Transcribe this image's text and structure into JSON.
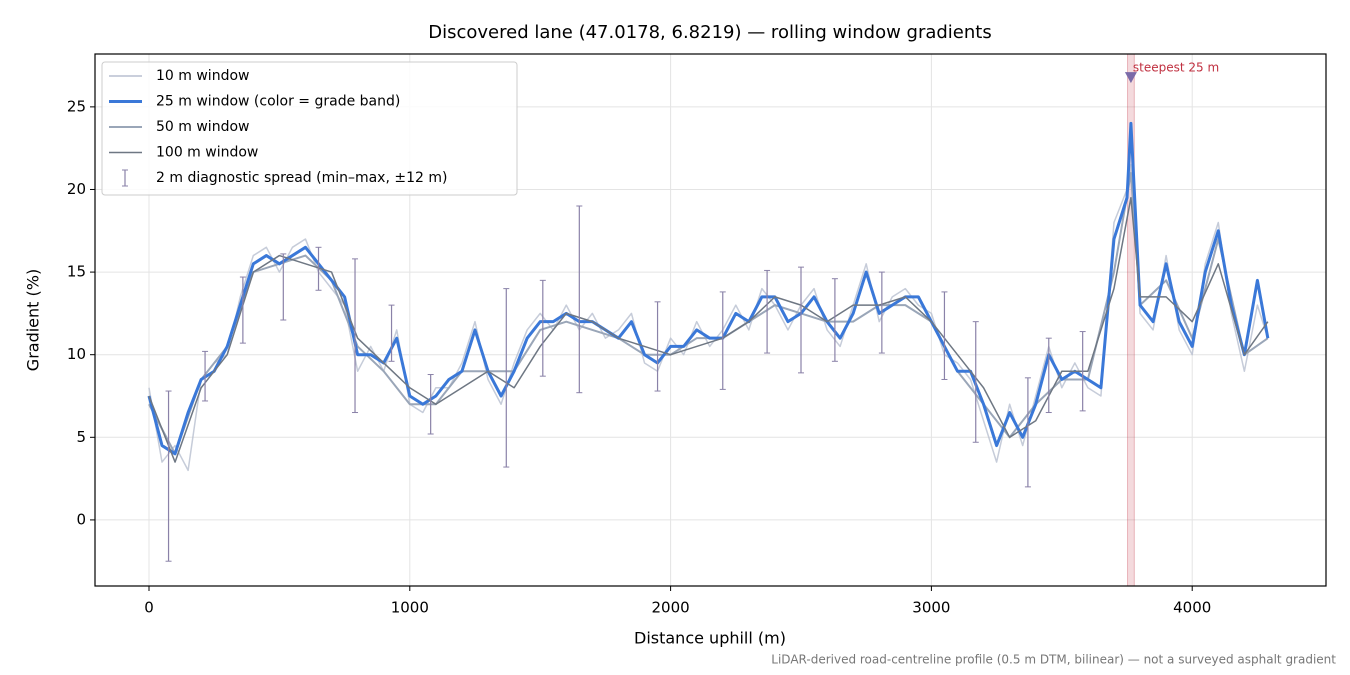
{
  "chart_data": {
    "type": "line",
    "title": "Discovered lane (47.0178, 6.8219) — rolling window gradients",
    "x_label": "Distance uphill (m)",
    "y_label": "Gradient (%)",
    "footnote": "LiDAR-derived road-centreline profile (0.5 m DTM, bilinear) — not a surveyed asphalt gradient",
    "xlim": [
      -207,
      4513
    ],
    "ylim": [
      -4.0,
      28.2
    ],
    "xticks": [
      0,
      1000,
      2000,
      3000,
      4000
    ],
    "yticks": [
      0,
      5,
      10,
      15,
      20,
      25
    ],
    "grid": true,
    "legend": "upper left",
    "series": [
      {
        "name": "10 m window",
        "color": "#b8bfd0",
        "width": 1.5,
        "x": [
          0,
          50,
          100,
          150,
          200,
          250,
          300,
          350,
          400,
          450,
          500,
          550,
          600,
          650,
          700,
          750,
          800,
          850,
          900,
          950,
          1000,
          1050,
          1100,
          1150,
          1200,
          1250,
          1300,
          1350,
          1400,
          1450,
          1500,
          1550,
          1600,
          1650,
          1700,
          1750,
          1800,
          1850,
          1900,
          1950,
          2000,
          2050,
          2100,
          2150,
          2200,
          2250,
          2300,
          2350,
          2400,
          2450,
          2500,
          2550,
          2600,
          2650,
          2700,
          2750,
          2800,
          2850,
          2900,
          2950,
          3000,
          3050,
          3100,
          3150,
          3200,
          3250,
          3300,
          3350,
          3400,
          3450,
          3500,
          3550,
          3600,
          3650,
          3700,
          3750,
          3765,
          3800,
          3850,
          3900,
          3950,
          4000,
          4050,
          4100,
          4150,
          4200,
          4250,
          4290
        ],
        "values": [
          8,
          3.5,
          4.5,
          3,
          8.5,
          9.5,
          10,
          13.5,
          16,
          16.5,
          15,
          16.5,
          17,
          15,
          14,
          13,
          9,
          10.5,
          9,
          11.5,
          7,
          6.5,
          8,
          8,
          9.5,
          12,
          8.5,
          7,
          9.5,
          11.5,
          12.5,
          11.5,
          13,
          11.5,
          12.5,
          11,
          11.5,
          12.5,
          9.5,
          9,
          11,
          10,
          12,
          10.5,
          11.5,
          13,
          11.5,
          14,
          13,
          11.5,
          13,
          14,
          11.5,
          10.5,
          13,
          15.5,
          12,
          13.5,
          14,
          13,
          12.5,
          10,
          9.5,
          8.5,
          6,
          3.5,
          7,
          4.5,
          7.5,
          10.5,
          8,
          9.5,
          8,
          7.5,
          18,
          20,
          21.5,
          12.5,
          11.5,
          16,
          11.5,
          10,
          15.5,
          18,
          12.5,
          9,
          13,
          11
        ]
      },
      {
        "name": "25 m window (color = grade band)",
        "color": "#3a78d8",
        "width": 3,
        "x": [
          0,
          50,
          100,
          150,
          200,
          250,
          300,
          350,
          400,
          450,
          500,
          550,
          600,
          650,
          700,
          750,
          800,
          850,
          900,
          950,
          1000,
          1050,
          1100,
          1150,
          1200,
          1250,
          1300,
          1350,
          1400,
          1450,
          1500,
          1550,
          1600,
          1650,
          1700,
          1750,
          1800,
          1850,
          1900,
          1950,
          2000,
          2050,
          2100,
          2150,
          2200,
          2250,
          2300,
          2350,
          2400,
          2450,
          2500,
          2550,
          2600,
          2650,
          2700,
          2750,
          2800,
          2850,
          2900,
          2950,
          3000,
          3050,
          3100,
          3150,
          3200,
          3250,
          3300,
          3350,
          3400,
          3450,
          3500,
          3550,
          3600,
          3650,
          3700,
          3750,
          3765,
          3800,
          3850,
          3900,
          3950,
          4000,
          4050,
          4100,
          4150,
          4200,
          4250,
          4290
        ],
        "values": [
          7.5,
          4.5,
          4,
          6.5,
          8.5,
          9,
          10.5,
          13,
          15.5,
          16,
          15.5,
          16,
          16.5,
          15.5,
          14.5,
          13.5,
          10,
          10,
          9.5,
          11,
          7.5,
          7,
          7.5,
          8.5,
          9,
          11.5,
          9,
          7.5,
          9,
          11,
          12,
          12,
          12.5,
          12,
          12,
          11.5,
          11,
          12,
          10,
          9.5,
          10.5,
          10.5,
          11.5,
          11,
          11,
          12.5,
          12,
          13.5,
          13.5,
          12,
          12.5,
          13.5,
          12,
          11,
          12.5,
          15,
          12.5,
          13,
          13.5,
          13.5,
          12,
          10.5,
          9,
          9,
          7,
          4.5,
          6.5,
          5,
          7,
          10,
          8.5,
          9,
          8.5,
          8,
          17,
          19.5,
          24,
          13,
          12,
          15.5,
          12,
          10.5,
          15,
          17.5,
          13,
          10,
          14.5,
          11
        ]
      },
      {
        "name": "50 m window",
        "color": "#9aa6b8",
        "width": 2,
        "x": [
          0,
          100,
          200,
          300,
          400,
          500,
          600,
          700,
          800,
          900,
          1000,
          1100,
          1200,
          1300,
          1400,
          1500,
          1600,
          1700,
          1800,
          1900,
          2000,
          2100,
          2200,
          2300,
          2400,
          2500,
          2600,
          2700,
          2800,
          2900,
          3000,
          3100,
          3200,
          3300,
          3400,
          3500,
          3600,
          3700,
          3765,
          3800,
          3900,
          4000,
          4100,
          4200,
          4290
        ],
        "values": [
          7,
          4,
          8.5,
          10.5,
          15,
          15.5,
          16,
          14.5,
          10.5,
          9,
          7,
          7,
          9,
          9,
          9,
          11.5,
          12,
          11.5,
          11,
          10,
          10,
          11,
          11,
          12,
          13,
          12.5,
          12,
          12,
          13,
          13,
          12,
          9,
          7,
          5,
          7,
          8.5,
          8.5,
          15,
          21,
          13,
          14.5,
          11,
          17,
          10,
          11
        ]
      },
      {
        "name": "100 m window",
        "color": "#6e7783",
        "width": 1.5,
        "x": [
          0,
          100,
          200,
          300,
          400,
          500,
          600,
          700,
          800,
          900,
          1000,
          1100,
          1200,
          1300,
          1400,
          1500,
          1600,
          1700,
          1800,
          1900,
          2000,
          2100,
          2200,
          2300,
          2400,
          2500,
          2600,
          2700,
          2800,
          2900,
          3000,
          3100,
          3200,
          3300,
          3400,
          3500,
          3600,
          3700,
          3765,
          3800,
          3900,
          4000,
          4100,
          4200,
          4290
        ],
        "values": [
          7.5,
          3.5,
          8,
          10,
          15,
          16,
          15.5,
          15,
          11,
          9.5,
          8,
          7,
          8,
          9,
          8,
          10.5,
          12.5,
          12,
          11,
          10.5,
          10,
          10.5,
          11,
          12,
          13.5,
          13,
          12,
          13,
          13,
          13.5,
          12,
          10,
          8,
          5,
          6,
          9,
          9,
          14,
          19.5,
          13.5,
          13.5,
          12,
          15.5,
          10,
          12
        ]
      }
    ],
    "errorbars": {
      "name": "2 m diagnostic spread (min–max, ±12 m)",
      "color": "#8a82a8",
      "x": [
        75,
        215,
        360,
        515,
        650,
        790,
        930,
        1080,
        1370,
        1510,
        1650,
        1950,
        2200,
        2370,
        2500,
        2630,
        2810,
        3050,
        3170,
        3370,
        3450,
        3580
      ],
      "min": [
        -2.5,
        7.2,
        10.7,
        12.1,
        13.9,
        6.5,
        9.6,
        5.2,
        3.2,
        8.7,
        7.7,
        7.8,
        7.9,
        10.1,
        8.9,
        9.6,
        10.1,
        8.5,
        4.7,
        2,
        6.5,
        6.6
      ],
      "max": [
        7.8,
        10.2,
        14.7,
        16.1,
        16.5,
        15.8,
        13,
        8.8,
        14,
        14.5,
        19,
        13.2,
        13.8,
        15.1,
        15.3,
        14.6,
        15,
        13.8,
        12,
        8.6,
        11,
        11.4
      ]
    },
    "annotation": {
      "text": "steepest 25 m",
      "x": 3765,
      "y": 26.8,
      "band": [
        3752,
        3778
      ],
      "color": "#c03040"
    }
  }
}
